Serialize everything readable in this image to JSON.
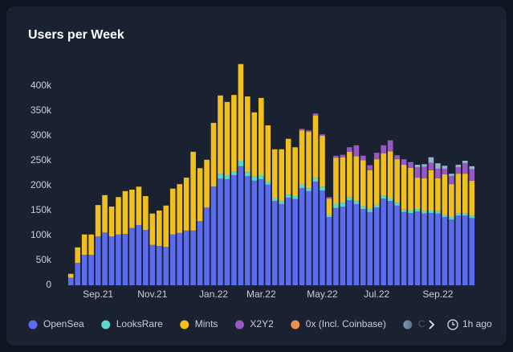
{
  "chart_data": {
    "type": "bar",
    "stacked": true,
    "title": "Users per Week",
    "categories": [
      null,
      null,
      null,
      null,
      "Sep.21",
      null,
      null,
      null,
      null,
      null,
      null,
      null,
      "Nov.21",
      null,
      null,
      null,
      null,
      null,
      null,
      null,
      null,
      "Jan.22",
      null,
      null,
      null,
      null,
      null,
      null,
      "Mar.22",
      null,
      null,
      null,
      null,
      null,
      null,
      null,
      null,
      "May.22",
      null,
      null,
      null,
      null,
      null,
      null,
      null,
      "Jul.22",
      null,
      null,
      null,
      null,
      null,
      null,
      null,
      null,
      "Sep.22",
      null,
      null,
      null,
      null,
      null
    ],
    "series": [
      {
        "name": "OpenSea",
        "color": "#5b6cf0",
        "values": [
          15000,
          45000,
          61000,
          61000,
          98000,
          106000,
          98000,
          102000,
          103000,
          115000,
          121000,
          111000,
          81000,
          79000,
          77000,
          102000,
          105000,
          110000,
          110000,
          129000,
          156000,
          198000,
          214000,
          213000,
          221000,
          239000,
          219000,
          210000,
          213000,
          202000,
          169000,
          163000,
          176000,
          173000,
          195000,
          189000,
          208000,
          190000,
          137000,
          155000,
          158000,
          171000,
          163000,
          153000,
          147000,
          156000,
          174000,
          169000,
          160000,
          147000,
          145000,
          148000,
          144000,
          145000,
          144000,
          137000,
          132000,
          140000,
          140000,
          135000
        ]
      },
      {
        "name": "LooksRare",
        "color": "#5fd6c9",
        "values": [
          0,
          0,
          0,
          0,
          0,
          0,
          0,
          0,
          0,
          0,
          0,
          0,
          0,
          0,
          0,
          0,
          0,
          0,
          0,
          0,
          0,
          0,
          10000,
          8000,
          8000,
          11000,
          8000,
          8000,
          8000,
          6000,
          6000,
          6000,
          6000,
          6000,
          7000,
          6000,
          7000,
          8000,
          5000,
          8000,
          8000,
          6000,
          6000,
          6000,
          6000,
          6000,
          6000,
          6000,
          6000,
          5000,
          5000,
          5000,
          5000,
          5000,
          5000,
          5000,
          5000,
          5000,
          5000,
          5000
        ]
      },
      {
        "name": "Mints",
        "color": "#f2c01e",
        "values": [
          8000,
          31000,
          41000,
          41000,
          63000,
          75000,
          60000,
          75000,
          86000,
          77000,
          77000,
          68000,
          63000,
          71000,
          83000,
          92000,
          98000,
          106000,
          158000,
          106000,
          96000,
          128000,
          157000,
          147000,
          153000,
          194000,
          152000,
          129000,
          155000,
          113000,
          98000,
          104000,
          112000,
          98000,
          109000,
          113000,
          126000,
          102000,
          32000,
          93000,
          91000,
          91000,
          90000,
          92000,
          78000,
          91000,
          85000,
          94000,
          87000,
          90000,
          86000,
          63000,
          66000,
          81000,
          66000,
          81000,
          66000,
          79000,
          79000,
          70000
        ]
      },
      {
        "name": "X2Y2",
        "color": "#9857c2",
        "values": [
          0,
          0,
          0,
          0,
          0,
          0,
          0,
          0,
          0,
          0,
          0,
          0,
          0,
          0,
          0,
          0,
          0,
          0,
          0,
          0,
          0,
          0,
          0,
          0,
          0,
          0,
          0,
          0,
          0,
          0,
          0,
          0,
          0,
          0,
          3000,
          3000,
          4000,
          3000,
          3000,
          4000,
          5000,
          9000,
          22000,
          9000,
          10000,
          13000,
          16000,
          22000,
          8000,
          11000,
          10000,
          21000,
          23000,
          15000,
          19000,
          11000,
          16000,
          13000,
          21000,
          23000
        ]
      },
      {
        "name": "0x (Incl. Coinbase)",
        "color": "#f0904a",
        "values": [
          0,
          0,
          0,
          0,
          0,
          0,
          0,
          0,
          0,
          0,
          0,
          0,
          0,
          0,
          0,
          0,
          0,
          0,
          0,
          0,
          0,
          0,
          0,
          0,
          0,
          0,
          0,
          0,
          0,
          0,
          0,
          0,
          0,
          0,
          0,
          0,
          0,
          0,
          0,
          0,
          0,
          0,
          0,
          0,
          0,
          0,
          0,
          0,
          0,
          0,
          0,
          0,
          0,
          0,
          0,
          0,
          0,
          0,
          0,
          0
        ]
      },
      {
        "name": "C",
        "color": "#8fb3c9",
        "values": [
          0,
          0,
          0,
          0,
          0,
          0,
          0,
          0,
          0,
          0,
          0,
          0,
          0,
          0,
          0,
          0,
          0,
          0,
          0,
          0,
          0,
          0,
          0,
          0,
          0,
          0,
          0,
          0,
          0,
          0,
          0,
          0,
          0,
          0,
          0,
          0,
          0,
          0,
          0,
          0,
          0,
          0,
          0,
          0,
          0,
          0,
          0,
          0,
          0,
          0,
          1000,
          5000,
          5000,
          11000,
          11000,
          6000,
          5000,
          5000,
          5000,
          6000
        ]
      }
    ],
    "ylim": [
      0,
      450000
    ],
    "yticks": [
      0,
      {
        "value": 50000,
        "label": "50k"
      },
      {
        "value": 100000,
        "label": "100k"
      },
      {
        "value": 150000,
        "label": "150k"
      },
      {
        "value": 200000,
        "label": "200k"
      },
      {
        "value": 250000,
        "label": "250k"
      },
      {
        "value": 300000,
        "label": "300k"
      },
      {
        "value": 350000,
        "label": "350k"
      },
      {
        "value": 400000,
        "label": "400k"
      }
    ],
    "grid": false,
    "updated": "1h ago"
  }
}
